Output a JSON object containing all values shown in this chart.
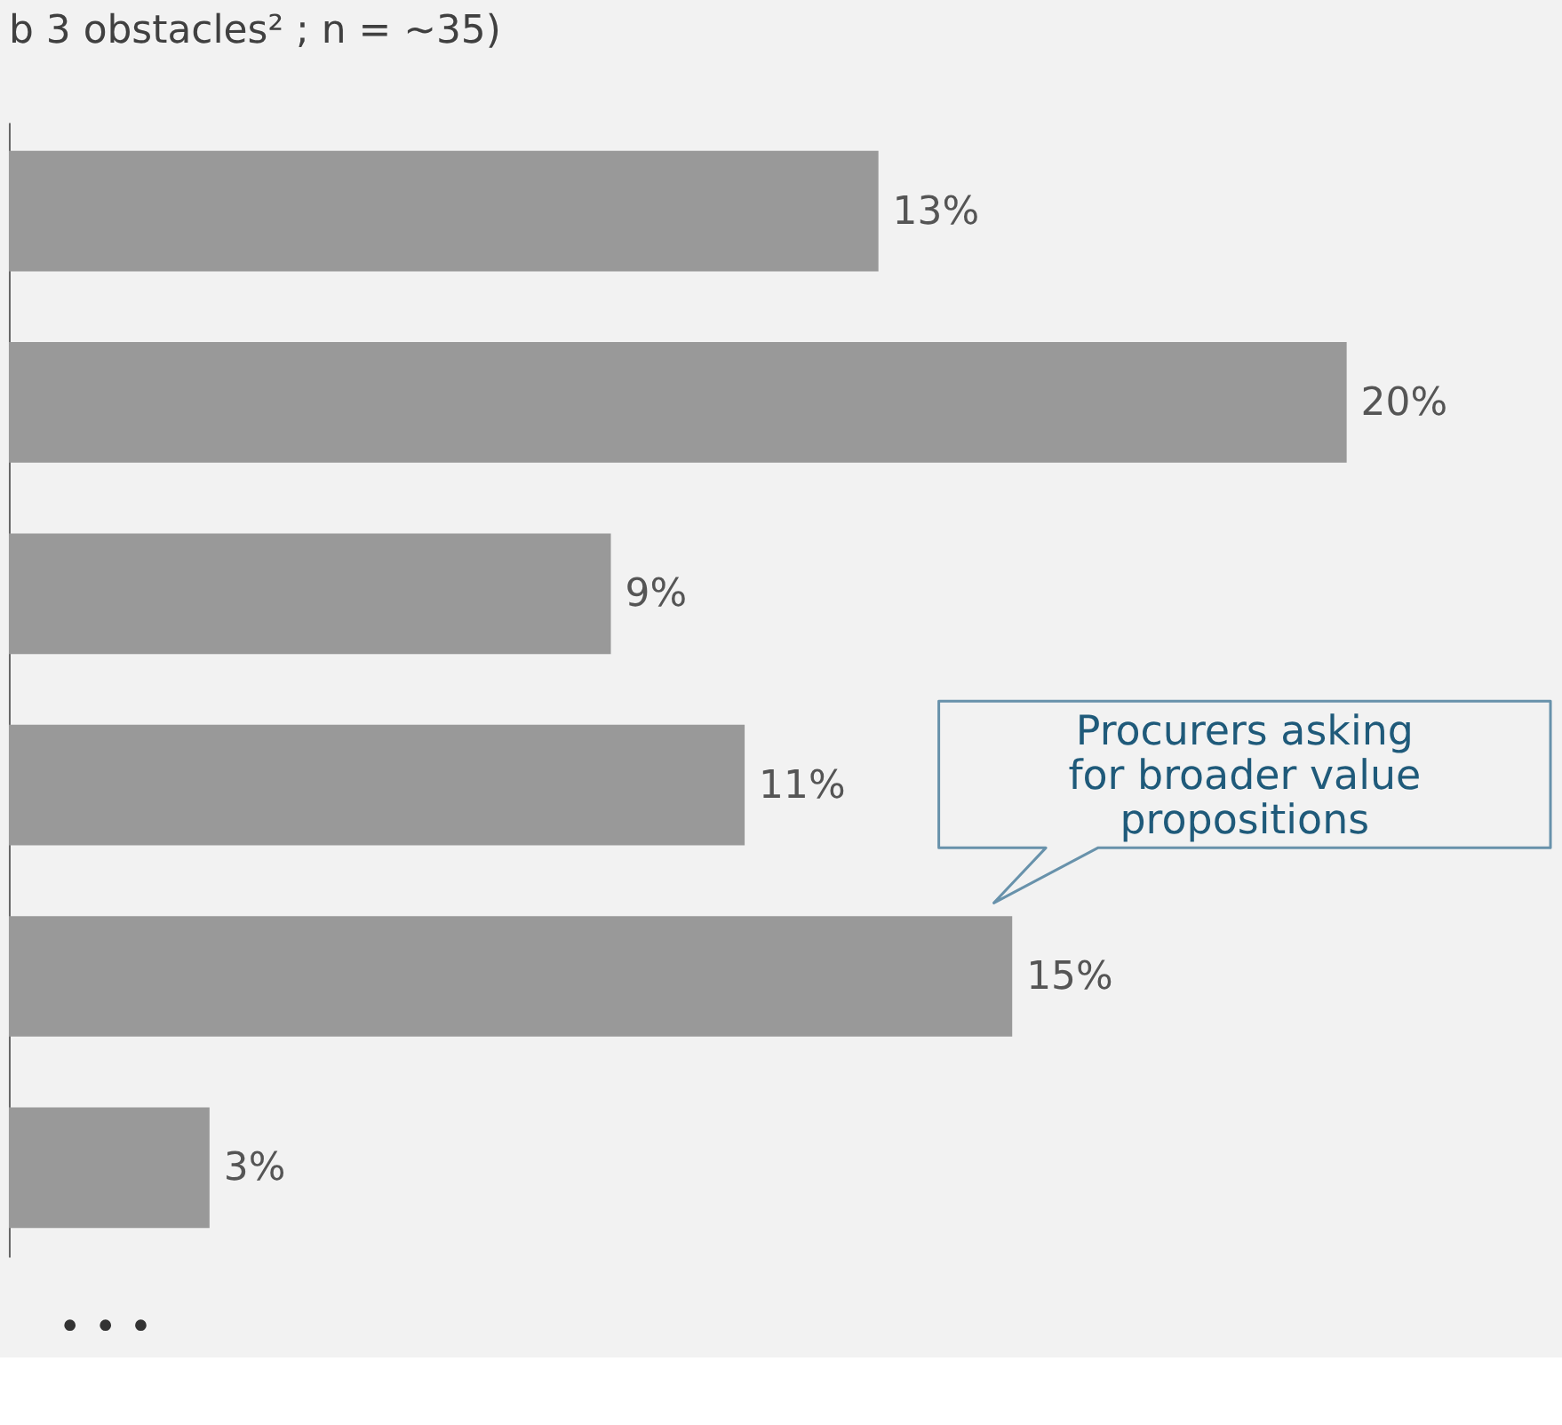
{
  "chart_data": {
    "type": "bar",
    "orientation": "horizontal",
    "title": "b 3 obstacles² ; n = ~35)",
    "categories": [
      null,
      null,
      null,
      null,
      null,
      null
    ],
    "values": [
      13,
      20,
      9,
      11,
      15,
      3
    ],
    "value_labels": [
      "13%",
      "20%",
      "9%",
      "11%",
      "15%",
      "3%"
    ],
    "color": "#999999",
    "annotations": [
      "Procurers asking\nfor broader value\npropositions",
      "• • •"
    ]
  }
}
